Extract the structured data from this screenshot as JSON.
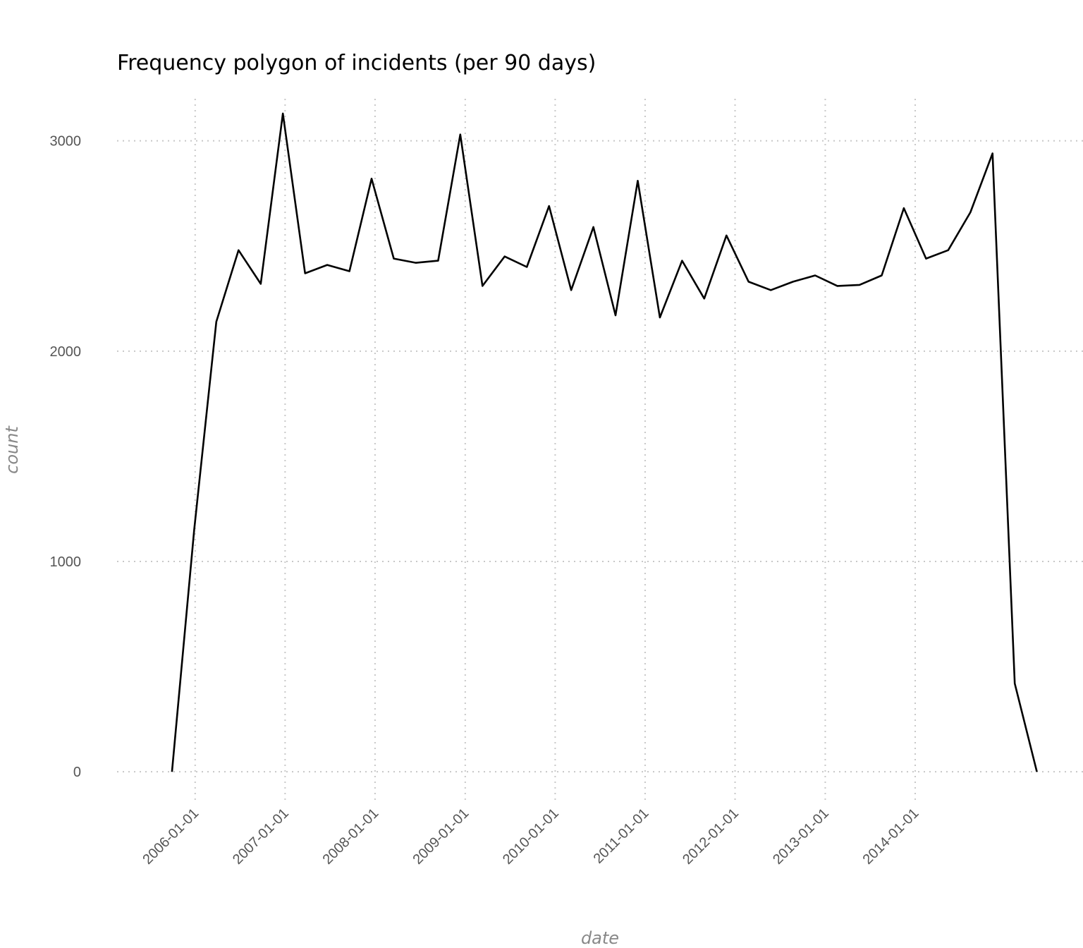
{
  "chart_data": {
    "type": "line",
    "title": "Frequency polygon of incidents (per 90 days)",
    "xlabel": "date",
    "ylabel": "count",
    "x_scale": "date",
    "xlim": [
      "2005-02-18",
      "2015-11-13"
    ],
    "ylim": [
      -100,
      3200
    ],
    "x_ticks": [
      "2006-01-01",
      "2007-01-01",
      "2008-01-01",
      "2009-01-01",
      "2010-01-01",
      "2011-01-01",
      "2012-01-01",
      "2013-01-01",
      "2014-01-01"
    ],
    "y_ticks": [
      0,
      1000,
      2000,
      3000
    ],
    "grid": true,
    "legend": "none",
    "series": [
      {
        "color": "#000000",
        "points": [
          {
            "x": "2005-09-29",
            "y": 0
          },
          {
            "x": "2005-12-28",
            "y": 1150
          },
          {
            "x": "2006-03-28",
            "y": 2140
          },
          {
            "x": "2006-06-26",
            "y": 2480
          },
          {
            "x": "2006-09-24",
            "y": 2320
          },
          {
            "x": "2006-12-23",
            "y": 3130
          },
          {
            "x": "2007-03-23",
            "y": 2370
          },
          {
            "x": "2007-06-21",
            "y": 2410
          },
          {
            "x": "2007-09-19",
            "y": 2380
          },
          {
            "x": "2007-12-18",
            "y": 2820
          },
          {
            "x": "2008-03-17",
            "y": 2440
          },
          {
            "x": "2008-06-15",
            "y": 2420
          },
          {
            "x": "2008-09-13",
            "y": 2430
          },
          {
            "x": "2008-12-12",
            "y": 3030
          },
          {
            "x": "2009-03-12",
            "y": 2310
          },
          {
            "x": "2009-06-10",
            "y": 2450
          },
          {
            "x": "2009-09-08",
            "y": 2400
          },
          {
            "x": "2009-12-07",
            "y": 2690
          },
          {
            "x": "2010-03-07",
            "y": 2290
          },
          {
            "x": "2010-06-05",
            "y": 2590
          },
          {
            "x": "2010-09-03",
            "y": 2170
          },
          {
            "x": "2010-12-02",
            "y": 2810
          },
          {
            "x": "2011-03-02",
            "y": 2160
          },
          {
            "x": "2011-05-31",
            "y": 2430
          },
          {
            "x": "2011-08-29",
            "y": 2250
          },
          {
            "x": "2011-11-27",
            "y": 2550
          },
          {
            "x": "2012-02-25",
            "y": 2330
          },
          {
            "x": "2012-05-25",
            "y": 2290
          },
          {
            "x": "2012-08-23",
            "y": 2330
          },
          {
            "x": "2012-11-21",
            "y": 2360
          },
          {
            "x": "2013-02-19",
            "y": 2310
          },
          {
            "x": "2013-05-20",
            "y": 2315
          },
          {
            "x": "2013-08-18",
            "y": 2360
          },
          {
            "x": "2013-11-16",
            "y": 2680
          },
          {
            "x": "2014-02-14",
            "y": 2440
          },
          {
            "x": "2014-05-15",
            "y": 2480
          },
          {
            "x": "2014-08-13",
            "y": 2660
          },
          {
            "x": "2014-11-11",
            "y": 2940
          },
          {
            "x": "2015-02-09",
            "y": 420
          },
          {
            "x": "2015-05-10",
            "y": 0
          }
        ]
      }
    ]
  }
}
